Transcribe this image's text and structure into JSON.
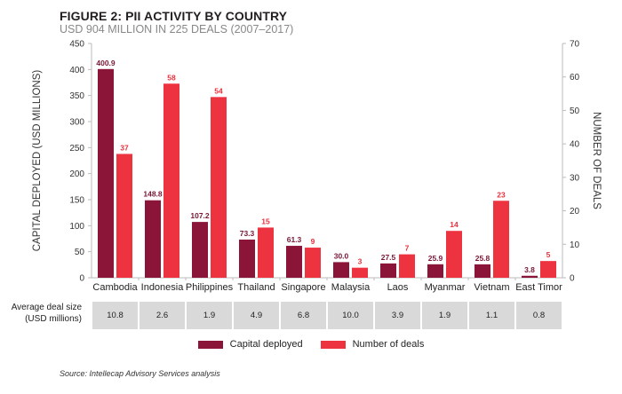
{
  "chart_data": {
    "type": "bar",
    "title": "FIGURE 2: PII ACTIVITY BY COUNTRY",
    "subtitle": "USD 904 MILLION IN 225 DEALS (2007–2017)",
    "categories": [
      "Cambodia",
      "Indonesia",
      "Philippines",
      "Thailand",
      "Singapore",
      "Malaysia",
      "Laos",
      "Myanmar",
      "Vietnam",
      "East Timor"
    ],
    "series": [
      {
        "name": "Capital deployed",
        "axis": "left",
        "color": "#8a1538",
        "values": [
          400.9,
          148.8,
          107.2,
          73.3,
          61.3,
          30.0,
          27.5,
          25.9,
          25.8,
          3.8
        ],
        "labels": [
          "400.9",
          "148.8",
          "107.2",
          "73.3",
          "61.3",
          "30.0",
          "27.5",
          "25.9",
          "25.8",
          "3.8"
        ]
      },
      {
        "name": "Number of deals",
        "axis": "right",
        "color": "#ee3340",
        "values": [
          37,
          58,
          54,
          15,
          9,
          3,
          7,
          14,
          23,
          5
        ],
        "labels": [
          "37",
          "58",
          "54",
          "15",
          "9",
          "3",
          "7",
          "14",
          "23",
          "5"
        ]
      }
    ],
    "ylabel": "CAPITAL DEPLOYED (USD MILLIONS)",
    "ylim": [
      0,
      450
    ],
    "yticks": [
      "0",
      "50",
      "100",
      "150",
      "200",
      "250",
      "300",
      "350",
      "400",
      "450"
    ],
    "y2label": "NUMBER OF DEALS",
    "y2lim": [
      0,
      70
    ],
    "y2ticks": [
      "0",
      "10",
      "20",
      "30",
      "40",
      "50",
      "60",
      "70"
    ],
    "grid": false,
    "legend_position": "bottom-center"
  },
  "table": {
    "row_label_line1": "Average deal size",
    "row_label_line2": "(USD millions)",
    "values": [
      "10.8",
      "2.6",
      "1.9",
      "4.9",
      "6.8",
      "10.0",
      "3.9",
      "1.9",
      "1.1",
      "0.8"
    ]
  },
  "legend": {
    "items": [
      {
        "label": "Capital deployed",
        "color": "#8a1538"
      },
      {
        "label": "Number of deals",
        "color": "#ee3340"
      }
    ]
  },
  "source": "Source: Intellecap Advisory Services analysis"
}
